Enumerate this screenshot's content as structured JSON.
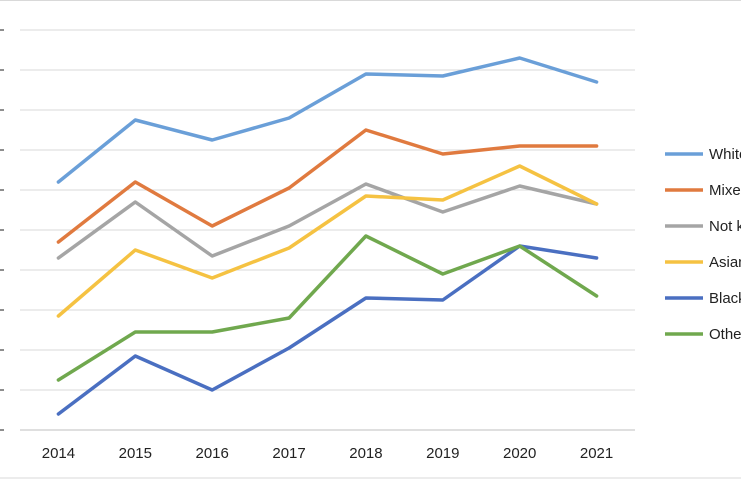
{
  "chart_data": {
    "type": "line",
    "title": "",
    "xlabel": "",
    "ylabel": "",
    "x": [
      "2014",
      "2015",
      "2016",
      "2017",
      "2018",
      "2019",
      "2020",
      "2021"
    ],
    "ylim": [
      0,
      100
    ],
    "grid": true,
    "legend": "right",
    "series": [
      {
        "name": "White",
        "color": "#6a9fd8",
        "values": [
          62,
          77.5,
          72.5,
          78,
          89,
          88.5,
          93,
          87
        ]
      },
      {
        "name": "Mixed",
        "color": "#e07a3f",
        "values": [
          47,
          62,
          51,
          60.5,
          75,
          69,
          71,
          71
        ]
      },
      {
        "name": "Not known",
        "color": "#a5a5a5",
        "values": [
          43,
          57,
          43.5,
          51,
          61.5,
          54.5,
          61,
          56.5
        ]
      },
      {
        "name": "Asian",
        "color": "#f5c242",
        "values": [
          28.5,
          45,
          38,
          45.5,
          58.5,
          57.5,
          66,
          56.5
        ]
      },
      {
        "name": "Black",
        "color": "#4a6fc1",
        "values": [
          4,
          18.5,
          10,
          20.5,
          33,
          32.5,
          46,
          43
        ]
      },
      {
        "name": "Other",
        "color": "#70a84e",
        "values": [
          12.5,
          24.5,
          24.5,
          28,
          48.5,
          39,
          46,
          33.5
        ]
      }
    ]
  }
}
